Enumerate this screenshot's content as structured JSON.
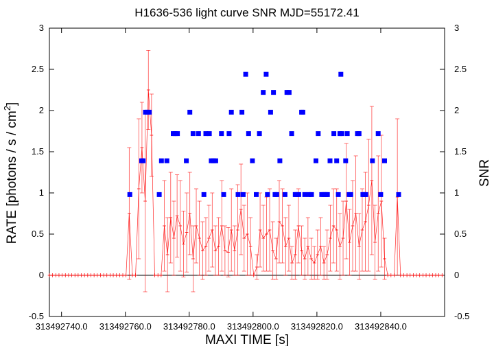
{
  "chart_data": {
    "type": "scatter",
    "title": "H1636-536 light curve  SNR MJD=55172.41",
    "xlabel": "MAXI TIME [s]",
    "ylabel": "RATE [photons / s / cm",
    "ylabel_sup": "2",
    "ylabel_end": "]",
    "y2label": "SNR",
    "xlim": [
      313492736.2,
      313492860.0
    ],
    "ylim": [
      -0.5,
      3
    ],
    "y2lim": [
      -0.5,
      3
    ],
    "xticks": [
      313492740,
      313492760,
      313492780,
      313492800,
      313492820,
      313492840
    ],
    "xtick_labels": [
      "313492740.0",
      "313492760.0",
      "313492780.0",
      "313492800.0",
      "313492820.0",
      "313492840.0"
    ],
    "yticks": [
      -0.5,
      0,
      0.5,
      1,
      1.5,
      2,
      2.5,
      3
    ],
    "ytick_labels": [
      "-0.5",
      "0",
      "0.5",
      "1",
      "1.5",
      "2",
      "2.5",
      "3"
    ],
    "y2tick_labels": [
      "-0.5",
      "0",
      "0.5",
      "1",
      "1.5",
      "2",
      "2.5",
      "3"
    ],
    "grid": false,
    "colors": {
      "rate": "#ff0000",
      "snr": "#0000ff"
    },
    "series": [
      {
        "label": "rate",
        "x": [
          313492736.2,
          313492737.2,
          313492738.2,
          313492739.2,
          313492740.2,
          313492741.2,
          313492742.2,
          313492743.2,
          313492744.2,
          313492745.2,
          313492746.2,
          313492747.2,
          313492748.2,
          313492749.2,
          313492750.2,
          313492751.2,
          313492752.2,
          313492753.2,
          313492754.2,
          313492755.2,
          313492756.2,
          313492757.2,
          313492758.2,
          313492759.2,
          313492760.2,
          313492761.2,
          313492762.2,
          313492763.2,
          313492764.2,
          313492765.2,
          313492766.2,
          313492767.2,
          313492768.2,
          313492769.2,
          313492770.2,
          313492771.2,
          313492772.2,
          313492773.2,
          313492774.2,
          313492775.2,
          313492776.2,
          313492777.2,
          313492778.2,
          313492779.2,
          313492780.2,
          313492781.2,
          313492782.2,
          313492783.2,
          313492784.2,
          313492785.2,
          313492786.2,
          313492787.2,
          313492788.2,
          313492789.2,
          313492790.2,
          313492791.2,
          313492792.2,
          313492793.2,
          313492794.2,
          313492795.2,
          313492796.2,
          313492797.2,
          313492798.2,
          313492799.2,
          313492800.2,
          313492801.2,
          313492802.2,
          313492803.2,
          313492804.2,
          313492805.2,
          313492806.2,
          313492807.2,
          313492808.2,
          313492809.2,
          313492810.2,
          313492811.2,
          313492812.2,
          313492813.2,
          313492814.2,
          313492815.2,
          313492816.2,
          313492817.2,
          313492818.2,
          313492819.2,
          313492820.2,
          313492821.2,
          313492822.2,
          313492823.2,
          313492824.2,
          313492825.2,
          313492826.2,
          313492827.2,
          313492828.2,
          313492829.2,
          313492830.2,
          313492831.2,
          313492832.2,
          313492833.2,
          313492834.2,
          313492835.2,
          313492836.2,
          313492837.2,
          313492838.2,
          313492839.2,
          313492840.2,
          313492841.2,
          313492842.2,
          313492843.2,
          313492844.2,
          313492845.2,
          313492846.2,
          313492847.2,
          313492848.2,
          313492849.2,
          313492850.2,
          313492851.2,
          313492852.2,
          313492853.2,
          313492854.2,
          313492855.2,
          313492856.2,
          313492857.2,
          313492858.2,
          313492859.2
        ],
        "y": [
          0,
          0,
          0,
          0,
          0,
          0,
          0,
          0,
          0,
          0,
          0,
          0,
          0,
          0,
          0,
          0,
          0,
          0,
          0,
          0,
          0,
          0,
          0,
          0,
          0,
          0.75,
          0,
          0,
          1.05,
          1.55,
          0.9,
          2.25,
          1.7,
          0,
          0,
          0,
          0.6,
          0.25,
          0.7,
          0.45,
          0.72,
          0.6,
          0.38,
          0.52,
          0.75,
          0.2,
          0.6,
          0.45,
          0.3,
          0.35,
          0.45,
          0.55,
          0.3,
          0.35,
          0.6,
          0.3,
          0.28,
          0.55,
          0.3,
          0.55,
          0.8,
          0.45,
          0.5,
          0.35,
          0,
          0.1,
          0.55,
          0.45,
          0.5,
          0.55,
          0.3,
          0.2,
          0.65,
          0.6,
          0.35,
          0.45,
          0.15,
          0.25,
          0.6,
          0.3,
          0.2,
          0.35,
          0.2,
          0.15,
          0.25,
          0.35,
          0.15,
          0.25,
          0.45,
          0.6,
          0.55,
          0.35,
          0.45,
          0.9,
          0.4,
          0.6,
          0.75,
          0.35,
          0.55,
          0.65,
          0.85,
          1.15,
          0.4,
          0.75,
          0.9,
          0.2,
          0,
          0,
          0,
          0.95,
          0,
          0,
          0,
          0,
          0,
          0,
          0,
          0,
          0,
          0,
          0,
          0,
          0,
          0
        ],
        "err": [
          0,
          0,
          0,
          0,
          0,
          0,
          0,
          0,
          0,
          0,
          0,
          0,
          0,
          0,
          0,
          0,
          0,
          0,
          0,
          0,
          0,
          0,
          0,
          0,
          0,
          0.8,
          0,
          0,
          0.85,
          0.55,
          1.1,
          0.48,
          0.5,
          0,
          0,
          0,
          0.55,
          0.45,
          0.55,
          0.45,
          0.5,
          0.55,
          0.4,
          0.48,
          0.5,
          0.4,
          0.45,
          0.45,
          0.35,
          0.35,
          0.4,
          0.45,
          0.3,
          0.35,
          0.55,
          0.3,
          0.3,
          0.5,
          0.3,
          0.55,
          0.55,
          0.4,
          0.5,
          0.35,
          0,
          0.15,
          0.45,
          0.4,
          0.45,
          0.5,
          0.35,
          0.25,
          0.5,
          0.45,
          0.35,
          0.4,
          0.2,
          0.3,
          0.45,
          0.3,
          0.25,
          0.35,
          0.25,
          0.2,
          0.3,
          0.35,
          0.2,
          0.3,
          0.4,
          0.45,
          0.5,
          0.4,
          0.45,
          0.7,
          0.4,
          0.55,
          0.7,
          0.4,
          0.5,
          0.6,
          0.8,
          0.9,
          0.45,
          0.7,
          0.8,
          0.25,
          0,
          0,
          0,
          0.95,
          0,
          0,
          0,
          0,
          0,
          0,
          0,
          0,
          0,
          0,
          0,
          0,
          0,
          0
        ]
      },
      {
        "label": "snr",
        "x": [
          313492761.4,
          313492765.1,
          313492765.6,
          313492766.3,
          313492766.8,
          313492767.5,
          313492770.6,
          313492771.3,
          313492773.0,
          313492775.0,
          313492775.6,
          313492776.3,
          313492779.1,
          313492780.2,
          313492781.2,
          313492782.9,
          313492784.6,
          313492785.2,
          313492786.3,
          313492786.9,
          313492787.6,
          313492788.3,
          313492790.1,
          313492790.8,
          313492792.5,
          313492793.2,
          313492795.3,
          313492796.5,
          313492796.9,
          313492797.7,
          313492798.6,
          313492799.8,
          313492801.0,
          313492802.0,
          313492803.2,
          313492804.1,
          313492804.5,
          313492805.5,
          313492806.4,
          313492806.9,
          313492807.4,
          313492808.4,
          313492810.0,
          313492810.6,
          313492811.3,
          313492812.1,
          313492813.2,
          313492813.7,
          313492814.3,
          313492815.2,
          313492815.6,
          313492816.2,
          313492817.5,
          313492818.3,
          313492819.7,
          313492820.4,
          313492821.5,
          313492822.2,
          313492822.8,
          313492823.3,
          313492824.1,
          313492825.3,
          313492826.2,
          313492826.7,
          313492827.2,
          313492827.5,
          313492827.8,
          313492829.0,
          313492829.5,
          313492830.1,
          313492830.6,
          313492832.7,
          313492833.2,
          313492834.4,
          313492834.9,
          313492835.3,
          313492837.4,
          313492839.2,
          313492840.0,
          313492841.2,
          313492845.6
        ],
        "y": [
          0.98,
          1.39,
          1.39,
          1.98,
          1.98,
          1.98,
          0.98,
          1.39,
          1.39,
          1.72,
          1.72,
          1.72,
          1.39,
          1.98,
          1.72,
          1.72,
          0.98,
          1.72,
          1.72,
          1.39,
          1.39,
          1.39,
          1.72,
          0.98,
          1.72,
          1.98,
          0.98,
          1.98,
          0.98,
          2.44,
          1.72,
          1.39,
          0.98,
          1.72,
          2.22,
          2.44,
          0.98,
          1.98,
          2.22,
          0.98,
          0.98,
          1.39,
          0.98,
          2.22,
          2.22,
          1.72,
          0.98,
          0.98,
          0.98,
          1.98,
          1.98,
          0.98,
          0.98,
          0.98,
          1.39,
          1.72,
          0.98,
          0.98,
          0.98,
          0.98,
          1.39,
          1.72,
          1.39,
          0.98,
          1.72,
          2.44,
          1.72,
          1.39,
          1.72,
          0.98,
          0.98,
          1.72,
          1.72,
          0.98,
          0.98,
          0.98,
          1.39,
          1.72,
          0.98,
          1.39,
          0.98
        ]
      }
    ]
  }
}
